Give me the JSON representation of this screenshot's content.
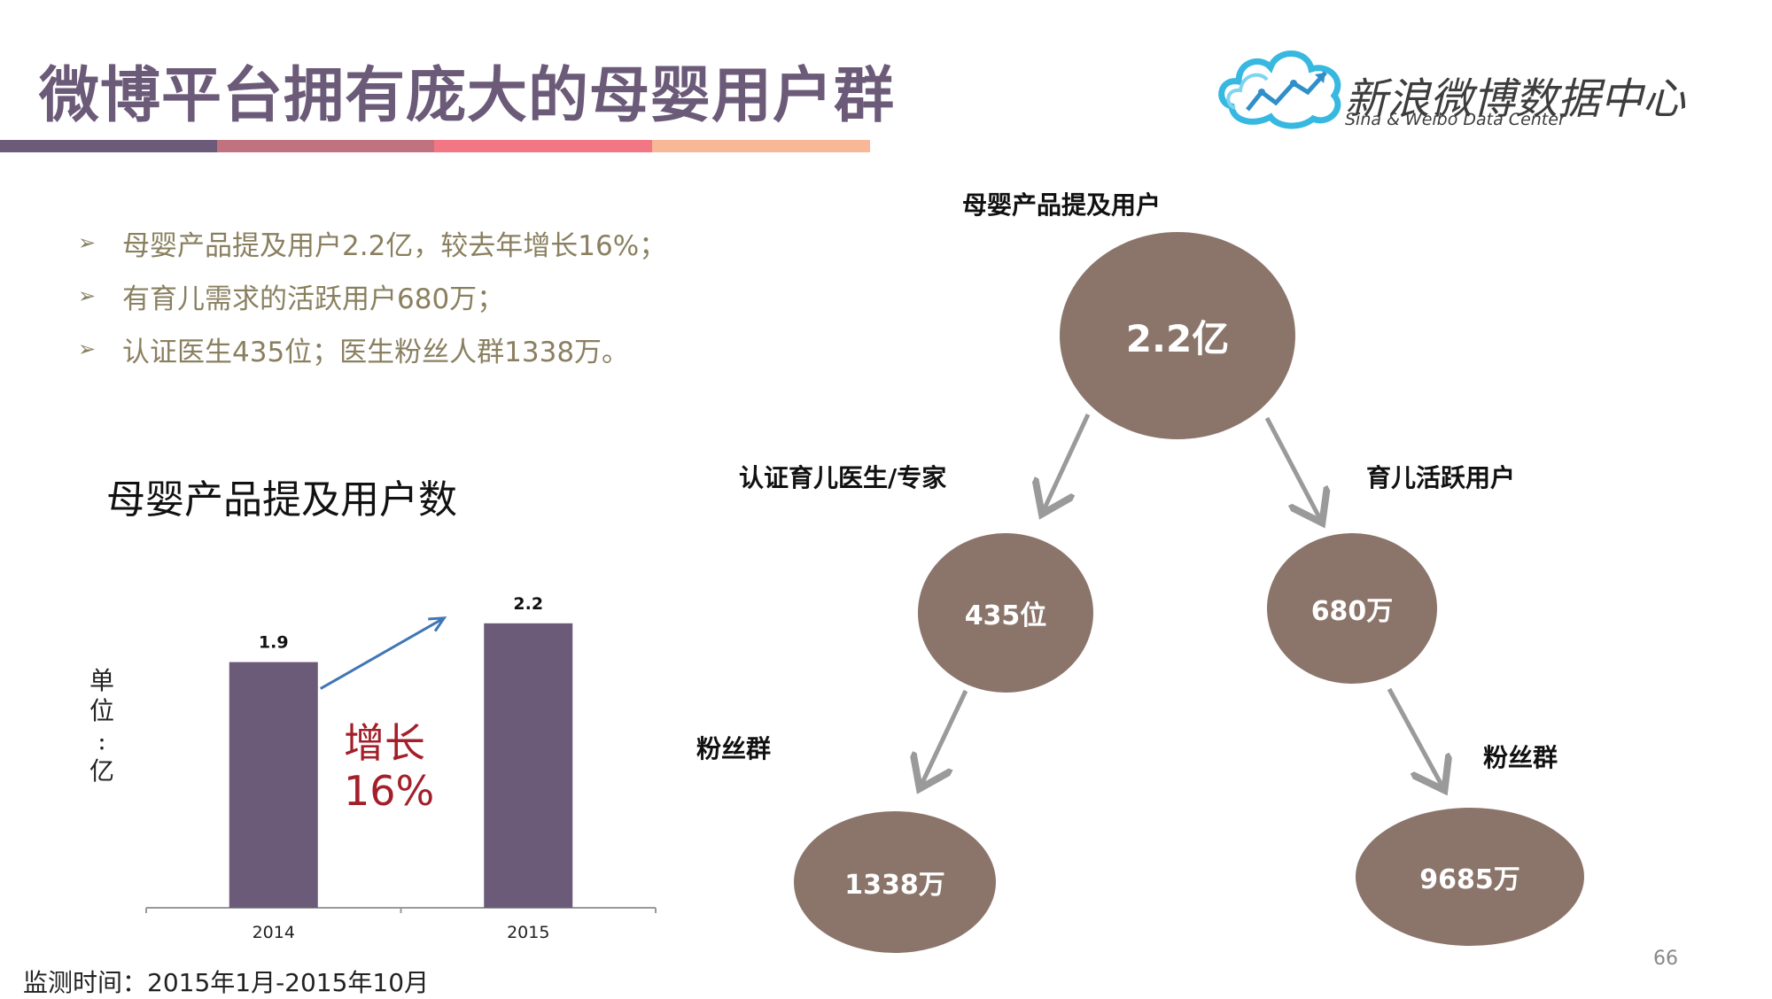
{
  "header": {
    "title": "微博平台拥有庞大的母婴用户群",
    "band_colors": [
      "#6b5a78",
      "#c0727f",
      "#f27683",
      "#f8b796"
    ],
    "logo_text": "新浪微博数据中心",
    "logo_subtext": "Sina & Weibo Data Center"
  },
  "bullets": [
    "母婴产品提及用户2.2亿，较去年增长16%；",
    "有育儿需求的活跃用户680万；",
    "认证医生435位；医生粉丝人群1338万。"
  ],
  "bullet_marker": "➢",
  "chart": {
    "title": "母婴产品提及用户数",
    "unit_label": [
      "单",
      "位",
      ":",
      "亿"
    ],
    "growth_label": [
      "增长",
      "16%"
    ]
  },
  "chart_data": {
    "type": "bar",
    "categories": [
      "2014",
      "2015"
    ],
    "values": [
      1.9,
      2.2
    ],
    "data_labels": [
      "1.9",
      "2.2"
    ],
    "title": "母婴产品提及用户数",
    "xlabel": "",
    "ylabel": "单位：亿",
    "ylim": [
      0,
      2.5
    ],
    "grid": false,
    "bar_color": "#6b5a78",
    "annotation": "增长 16%"
  },
  "tree": {
    "root": {
      "label": "母婴产品提及用户",
      "value": "2.2亿"
    },
    "left": {
      "label": "认证育儿医生/专家",
      "value": "435位"
    },
    "right": {
      "label": "育儿活跃用户",
      "value": "680万"
    },
    "left_leaf": {
      "label": "粉丝群",
      "value": "1338万"
    },
    "right_leaf": {
      "label": "粉丝群",
      "value": "9685万"
    },
    "node_color": "#8b756b",
    "arrow_color": "#9a9a9a"
  },
  "footer": {
    "monitor_period": "监测时间：2015年1月-2015年10月",
    "page_number": "66"
  }
}
